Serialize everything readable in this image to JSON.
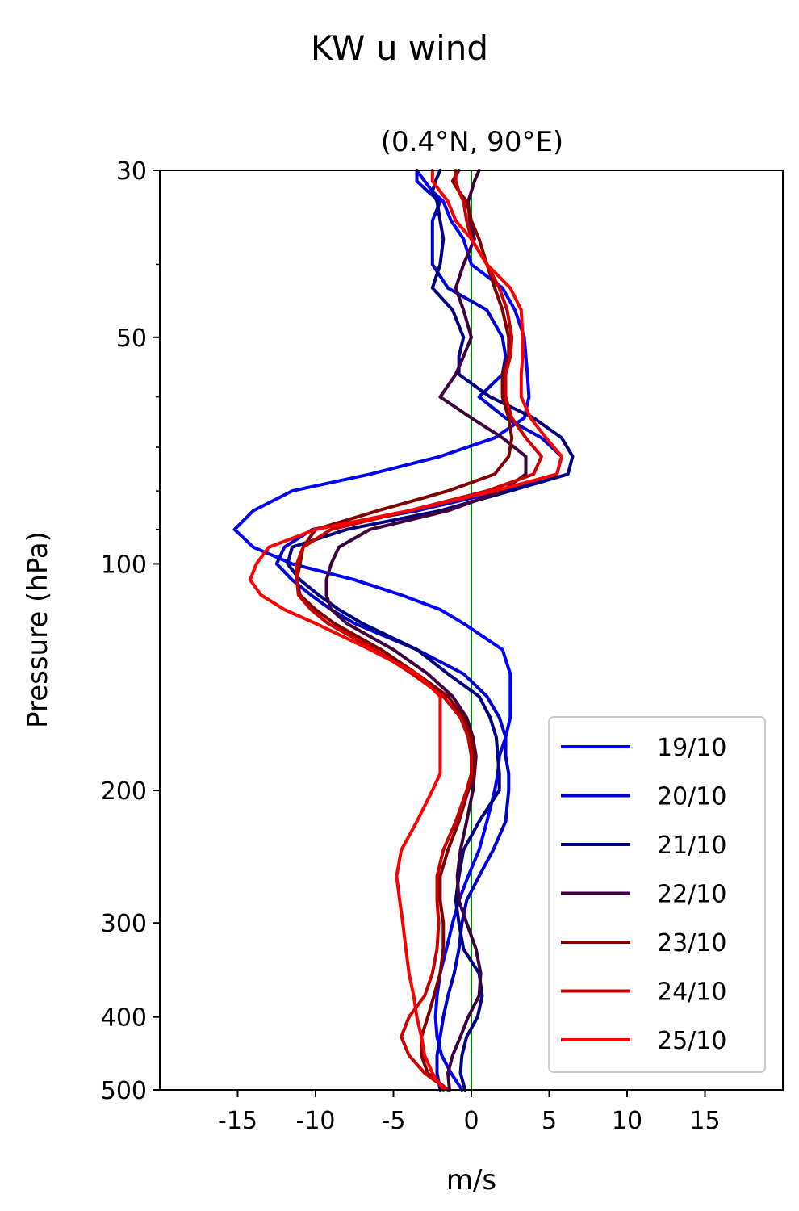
{
  "chart_data": {
    "type": "line",
    "suptitle": "KW u wind",
    "title": "(0.4°N, 90°E)",
    "xlabel": "m/s",
    "ylabel": "Pressure (hPa)",
    "xlim": [
      -20,
      20
    ],
    "ylim": [
      500,
      30
    ],
    "yscale": "log",
    "xticks": [
      -15,
      -10,
      -5,
      0,
      5,
      10,
      15
    ],
    "xtick_labels": [
      "-15",
      "-10",
      "-5",
      "0",
      "5",
      "10",
      "15"
    ],
    "yticks": [
      30,
      50,
      100,
      200,
      300,
      400,
      500
    ],
    "ytick_labels": [
      "30",
      "50",
      "100",
      "200",
      "300",
      "400",
      "500"
    ],
    "yminor_ticks": [
      40,
      60,
      70,
      80,
      90
    ],
    "reference_line": {
      "x": 0,
      "color": "#008000"
    },
    "legend_position": "lower right",
    "y": [
      30,
      31,
      32,
      33,
      35,
      37,
      40,
      43,
      46,
      50,
      53,
      56,
      60,
      64,
      68,
      72,
      76,
      80,
      85,
      90,
      95,
      100,
      105,
      110,
      115,
      120,
      130,
      140,
      150,
      160,
      170,
      180,
      190,
      200,
      220,
      240,
      260,
      280,
      300,
      325,
      350,
      375,
      400,
      425,
      450,
      475,
      500
    ],
    "series": [
      {
        "name": "19/10",
        "color": "#0000ff",
        "values": [
          -3.5,
          -3,
          -2.5,
          -1.8,
          -1.3,
          -0.5,
          0,
          2,
          2.8,
          3.4,
          3.5,
          3.6,
          3.7,
          3.4,
          1.5,
          -2,
          -6.5,
          -11.5,
          -14,
          -15.2,
          -14,
          -11.5,
          -7.5,
          -4.5,
          -2,
          -0.5,
          2,
          2.5,
          2.5,
          2.5,
          2.2,
          1.8,
          1.7,
          1.5,
          1,
          0.5,
          -0.2,
          -0.8,
          -1.2,
          -1.6,
          -2,
          -2.2,
          -2.3,
          -2.2,
          -1.9,
          -1.3,
          -0.6
        ]
      },
      {
        "name": "20/10",
        "color": "#0000cc",
        "values": [
          -3.5,
          -3.5,
          -2.8,
          -2,
          -2.5,
          -2.5,
          -2.5,
          -1.5,
          1,
          2,
          2.2,
          2.0,
          0.5,
          2.2,
          4.5,
          5.8,
          5.5,
          2,
          -3.5,
          -10.2,
          -12,
          -12.5,
          -11.5,
          -10.3,
          -9,
          -7.5,
          -3.5,
          -0.5,
          1,
          1.8,
          2.2,
          2.2,
          2.4,
          2.4,
          2.2,
          1.4,
          0.5,
          -0.3,
          -0.6,
          -0.8,
          -1.1,
          -1.5,
          -1.8,
          -2,
          -2.2,
          -2.2,
          -2
        ]
      },
      {
        "name": "21/10",
        "color": "#000080",
        "values": [
          -2,
          -2.3,
          -2.5,
          -2.2,
          -2,
          -1.8,
          -2,
          -2.5,
          -1.2,
          -0.5,
          -0.8,
          -0.8,
          1.2,
          4,
          5.8,
          6.5,
          6.2,
          2.5,
          -2,
          -8,
          -11.5,
          -11.8,
          -11,
          -9.8,
          -8.5,
          -7,
          -3.5,
          -1.5,
          0.5,
          1.2,
          1.6,
          1.7,
          1.8,
          1.8,
          0.5,
          -0.5,
          -0.8,
          -1,
          -0.8,
          -0.5,
          0.5,
          0.7,
          0.4,
          -0.3,
          -0.6,
          -0.7,
          -0.4
        ]
      },
      {
        "name": "22/10",
        "color": "#400040",
        "values": [
          0.5,
          0.2,
          0,
          -0.2,
          -0.1,
          0.2,
          -0.5,
          -1.0,
          -0.5,
          0,
          -0.5,
          -1.0,
          -2.0,
          0,
          2.0,
          3.5,
          3.5,
          2,
          -1.5,
          -6.5,
          -8.5,
          -9,
          -9.3,
          -9.3,
          -9.0,
          -8.0,
          -5.0,
          -2.8,
          -1.2,
          -0.3,
          0.1,
          0.3,
          0.2,
          0.1,
          -0.3,
          -0.7,
          -0.9,
          -0.8,
          -0.3,
          0.3,
          0.6,
          0.5,
          -0.2,
          -0.7,
          -1.2,
          -1.5,
          -1.4
        ]
      },
      {
        "name": "23/10",
        "color": "#800000",
        "values": [
          -0.8,
          -1.2,
          -0.8,
          -0.3,
          0,
          0.5,
          1.0,
          1.5,
          2.0,
          2.4,
          2.4,
          2.0,
          2.0,
          2.4,
          2.6,
          2.4,
          1.5,
          -1.5,
          -6,
          -10,
          -10.8,
          -11,
          -11.2,
          -11.0,
          -10.0,
          -8.8,
          -5.8,
          -3.5,
          -1.5,
          -0.5,
          0.0,
          0.2,
          0.2,
          -0.2,
          -0.8,
          -1.5,
          -2.0,
          -2.0,
          -1.8,
          -1.8,
          -2.0,
          -2.4,
          -2.8,
          -3.2,
          -3.2,
          -2.8,
          -1.5
        ]
      },
      {
        "name": "24/10",
        "color": "#cc0000",
        "values": [
          -1,
          -1,
          -0.8,
          -0.5,
          -0.3,
          0,
          1.0,
          1.8,
          2.3,
          2.6,
          2.5,
          2.2,
          2.2,
          2.6,
          3.5,
          4.5,
          4,
          1.0,
          -4.0,
          -9.0,
          -10.8,
          -11.2,
          -11.2,
          -11.1,
          -10.3,
          -9.2,
          -6.2,
          -3.8,
          -1.8,
          -0.7,
          -0.2,
          0.0,
          0.0,
          -0.3,
          -1.0,
          -1.8,
          -2.2,
          -2.2,
          -2.1,
          -2.2,
          -2.5,
          -3.0,
          -4.0,
          -4.5,
          -4.0,
          -3.0,
          -1.5
        ]
      },
      {
        "name": "25/10",
        "color": "#ff0000",
        "values": [
          -2.5,
          -2.5,
          -2.0,
          -1.5,
          -1.0,
          0,
          1.0,
          2.5,
          3.2,
          3.3,
          3.3,
          3.2,
          3.2,
          3.8,
          4.8,
          5.8,
          5.5,
          1.5,
          -4.0,
          -10.0,
          -13.0,
          -13.8,
          -14.2,
          -13.5,
          -12.0,
          -10.0,
          -6.5,
          -3.5,
          -2.0,
          -2.0,
          -2.0,
          -2.0,
          -2.0,
          -2.5,
          -3.5,
          -4.5,
          -4.8,
          -4.6,
          -4.4,
          -4.2,
          -4.0,
          -3.7,
          -3.5,
          -3.2,
          -3.0,
          -2.5,
          -1.8
        ]
      }
    ]
  }
}
